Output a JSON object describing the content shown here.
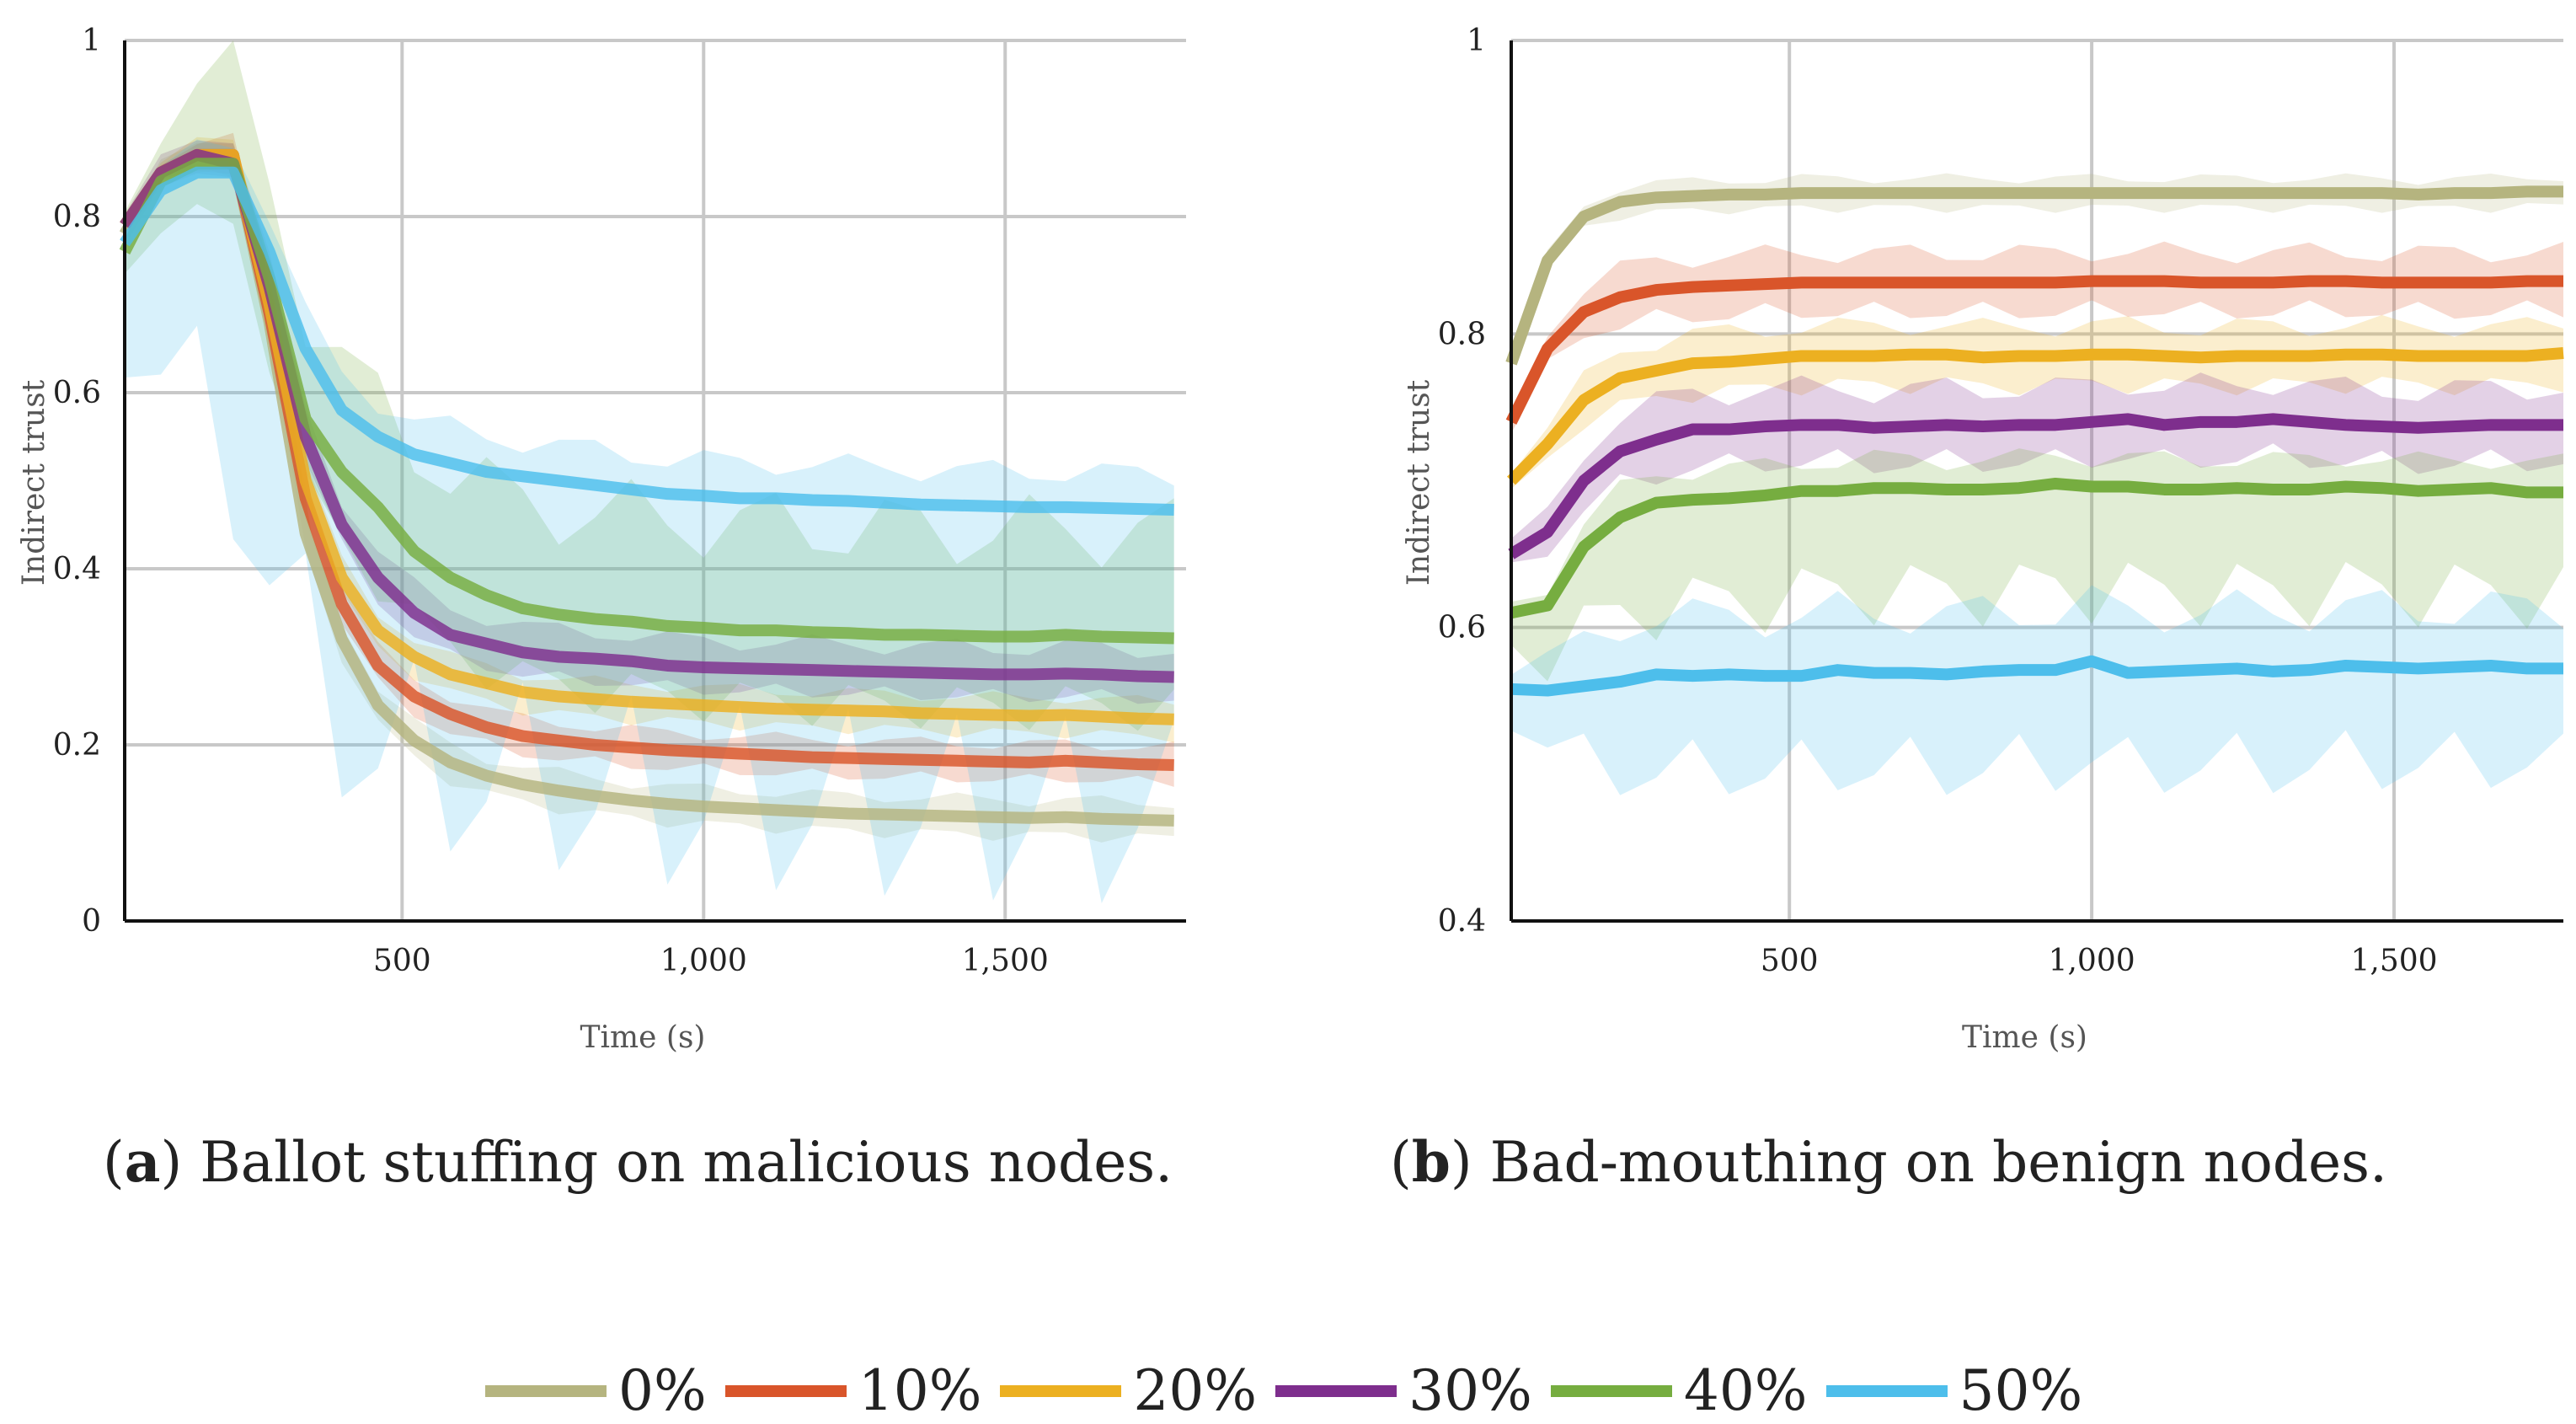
{
  "chart_data": [
    {
      "type": "line",
      "panel": "a",
      "caption_label": "a",
      "caption_text": "Ballot stuffing on malicious nodes.",
      "xlabel": "Time (s)",
      "ylabel": "Indirect trust",
      "xlim": [
        40,
        1800
      ],
      "ylim": [
        0,
        1
      ],
      "xticks": [
        500,
        1000,
        1500
      ],
      "xtick_labels": [
        "500",
        "1,000",
        "1,500"
      ],
      "yticks": [
        0,
        0.2,
        0.4,
        0.6,
        0.8,
        1
      ],
      "ytick_labels": [
        "0",
        "0.2",
        "0.4",
        "0.6",
        "0.8",
        "1"
      ],
      "grid": true,
      "x": [
        40,
        100,
        160,
        220,
        280,
        340,
        400,
        460,
        520,
        580,
        640,
        700,
        760,
        820,
        880,
        940,
        1000,
        1060,
        1120,
        1180,
        1240,
        1300,
        1360,
        1420,
        1480,
        1540,
        1600,
        1660,
        1720,
        1780
      ],
      "series": [
        {
          "name": "0%",
          "color": "#b5b47f",
          "band": [
            0.02,
            0.02
          ],
          "values": [
            0.78,
            0.85,
            0.87,
            0.87,
            0.68,
            0.44,
            0.32,
            0.245,
            0.205,
            0.18,
            0.165,
            0.155,
            0.148,
            0.142,
            0.137,
            0.133,
            0.13,
            0.128,
            0.126,
            0.124,
            0.122,
            0.121,
            0.12,
            0.119,
            0.118,
            0.117,
            0.118,
            0.116,
            0.115,
            0.114
          ]
        },
        {
          "name": "10%",
          "color": "#d9552a",
          "band": [
            0.02,
            0.02
          ],
          "values": [
            0.79,
            0.85,
            0.87,
            0.87,
            0.69,
            0.48,
            0.36,
            0.29,
            0.255,
            0.235,
            0.22,
            0.21,
            0.205,
            0.2,
            0.197,
            0.194,
            0.192,
            0.19,
            0.188,
            0.186,
            0.185,
            0.184,
            0.183,
            0.182,
            0.181,
            0.18,
            0.182,
            0.18,
            0.178,
            0.177
          ]
        },
        {
          "name": "20%",
          "color": "#ecb021",
          "band": [
            0.02,
            0.02
          ],
          "values": [
            0.79,
            0.85,
            0.87,
            0.87,
            0.7,
            0.5,
            0.39,
            0.33,
            0.3,
            0.28,
            0.27,
            0.26,
            0.255,
            0.252,
            0.249,
            0.247,
            0.245,
            0.243,
            0.241,
            0.24,
            0.239,
            0.238,
            0.236,
            0.235,
            0.234,
            0.233,
            0.234,
            0.232,
            0.23,
            0.229
          ]
        },
        {
          "name": "30%",
          "color": "#7e2e8d",
          "band": [
            0.025,
            0.03
          ],
          "values": [
            0.79,
            0.85,
            0.87,
            0.86,
            0.72,
            0.55,
            0.45,
            0.39,
            0.35,
            0.325,
            0.315,
            0.305,
            0.3,
            0.298,
            0.295,
            0.29,
            0.288,
            0.287,
            0.286,
            0.285,
            0.284,
            0.283,
            0.282,
            0.281,
            0.28,
            0.28,
            0.281,
            0.28,
            0.278,
            0.277
          ]
        },
        {
          "name": "40%",
          "color": "#76ad40",
          "band": [
            0.08,
            0.12
          ],
          "values": [
            0.76,
            0.84,
            0.86,
            0.86,
            0.73,
            0.57,
            0.51,
            0.47,
            0.42,
            0.39,
            0.37,
            0.355,
            0.348,
            0.343,
            0.34,
            0.335,
            0.333,
            0.33,
            0.33,
            0.328,
            0.327,
            0.325,
            0.325,
            0.324,
            0.323,
            0.323,
            0.325,
            0.323,
            0.322,
            0.321
          ]
        },
        {
          "name": "50%",
          "color": "#4dbeeb",
          "band": [
            0.35,
            0.04
          ],
          "values": [
            0.77,
            0.83,
            0.85,
            0.85,
            0.76,
            0.65,
            0.58,
            0.55,
            0.53,
            0.52,
            0.51,
            0.505,
            0.5,
            0.495,
            0.49,
            0.485,
            0.483,
            0.48,
            0.48,
            0.478,
            0.477,
            0.475,
            0.473,
            0.472,
            0.471,
            0.47,
            0.47,
            0.469,
            0.468,
            0.467
          ]
        }
      ]
    },
    {
      "type": "line",
      "panel": "b",
      "caption_label": "b",
      "caption_text": "Bad-mouthing on benign nodes.",
      "xlabel": "Time (s)",
      "ylabel": "Indirect trust",
      "xlim": [
        40,
        1780
      ],
      "ylim": [
        0.4,
        1
      ],
      "xticks": [
        500,
        1000,
        1500
      ],
      "xtick_labels": [
        "500",
        "1,000",
        "1,500"
      ],
      "yticks": [
        0.4,
        0.6,
        0.8,
        1
      ],
      "ytick_labels": [
        "0.4",
        "0.6",
        "0.8",
        "1"
      ],
      "grid": true,
      "x": [
        40,
        100,
        160,
        220,
        280,
        340,
        400,
        460,
        520,
        580,
        640,
        700,
        760,
        820,
        880,
        940,
        1000,
        1060,
        1120,
        1180,
        1240,
        1300,
        1360,
        1420,
        1480,
        1540,
        1600,
        1660,
        1720,
        1780
      ],
      "series": [
        {
          "name": "0%",
          "color": "#b5b47f",
          "band": [
            0.01,
            0.01
          ],
          "values": [
            0.78,
            0.85,
            0.88,
            0.89,
            0.893,
            0.894,
            0.895,
            0.895,
            0.896,
            0.896,
            0.896,
            0.896,
            0.896,
            0.896,
            0.896,
            0.896,
            0.896,
            0.896,
            0.896,
            0.896,
            0.896,
            0.896,
            0.896,
            0.896,
            0.896,
            0.895,
            0.896,
            0.896,
            0.897,
            0.897
          ]
        },
        {
          "name": "10%",
          "color": "#d9552a",
          "band": [
            0.02,
            0.02
          ],
          "values": [
            0.74,
            0.79,
            0.815,
            0.825,
            0.83,
            0.832,
            0.833,
            0.834,
            0.835,
            0.835,
            0.835,
            0.835,
            0.835,
            0.835,
            0.835,
            0.835,
            0.836,
            0.836,
            0.836,
            0.835,
            0.835,
            0.835,
            0.836,
            0.836,
            0.835,
            0.835,
            0.835,
            0.835,
            0.836,
            0.836
          ]
        },
        {
          "name": "20%",
          "color": "#ecb021",
          "band": [
            0.02,
            0.02
          ],
          "values": [
            0.7,
            0.725,
            0.755,
            0.77,
            0.775,
            0.78,
            0.781,
            0.783,
            0.785,
            0.785,
            0.785,
            0.786,
            0.786,
            0.784,
            0.785,
            0.785,
            0.786,
            0.786,
            0.785,
            0.784,
            0.785,
            0.785,
            0.785,
            0.786,
            0.786,
            0.785,
            0.785,
            0.785,
            0.785,
            0.787
          ]
        },
        {
          "name": "30%",
          "color": "#7e2e8d",
          "band": [
            0.025,
            0.025
          ],
          "values": [
            0.65,
            0.665,
            0.7,
            0.72,
            0.728,
            0.735,
            0.735,
            0.737,
            0.738,
            0.738,
            0.736,
            0.737,
            0.738,
            0.737,
            0.738,
            0.738,
            0.74,
            0.742,
            0.738,
            0.74,
            0.74,
            0.742,
            0.74,
            0.738,
            0.737,
            0.736,
            0.737,
            0.738,
            0.738,
            0.738
          ]
        },
        {
          "name": "40%",
          "color": "#76ad40",
          "band": [
            0.07,
            0.02
          ],
          "values": [
            0.61,
            0.615,
            0.655,
            0.675,
            0.685,
            0.687,
            0.688,
            0.69,
            0.693,
            0.693,
            0.695,
            0.695,
            0.694,
            0.694,
            0.695,
            0.698,
            0.696,
            0.696,
            0.694,
            0.694,
            0.695,
            0.694,
            0.694,
            0.696,
            0.695,
            0.693,
            0.694,
            0.695,
            0.692,
            0.692
          ]
        },
        {
          "name": "50%",
          "color": "#4dbeeb",
          "band": [
            0.065,
            0.04
          ],
          "values": [
            0.558,
            0.557,
            0.56,
            0.563,
            0.568,
            0.567,
            0.568,
            0.567,
            0.567,
            0.571,
            0.569,
            0.569,
            0.568,
            0.57,
            0.571,
            0.571,
            0.577,
            0.569,
            0.57,
            0.571,
            0.572,
            0.57,
            0.571,
            0.574,
            0.573,
            0.572,
            0.573,
            0.574,
            0.572,
            0.572
          ]
        }
      ]
    }
  ],
  "legend": [
    {
      "label": "0%",
      "color": "#b5b47f"
    },
    {
      "label": "10%",
      "color": "#d9552a"
    },
    {
      "label": "20%",
      "color": "#ecb021"
    },
    {
      "label": "30%",
      "color": "#7e2e8d"
    },
    {
      "label": "40%",
      "color": "#76ad40"
    },
    {
      "label": "50%",
      "color": "#4dbeeb"
    }
  ]
}
